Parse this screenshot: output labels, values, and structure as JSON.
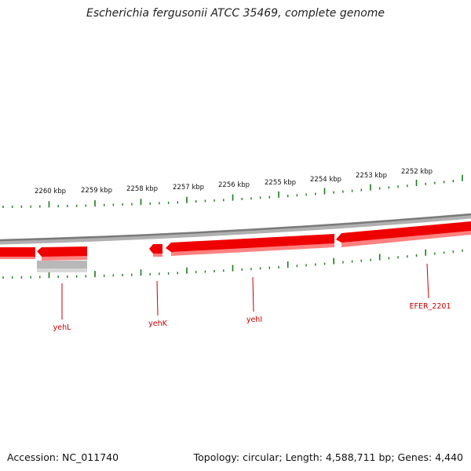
{
  "title": "Escherichia fergusonii ATCC 35469, complete genome",
  "footer": {
    "accession": "Accession: NC_011740",
    "summary": "Topology: circular; Length: 4,588,711 bp; Genes: 4,440"
  },
  "colors": {
    "gene_fill": "#ee0000",
    "gene_shadow": "#ff7777",
    "backbone": "#7a7a7a",
    "tick": "#1a7a1a",
    "label": "#cc0000",
    "gray_feature": "#b8b8b8"
  },
  "kbp_labels": [
    "2260 kbp",
    "2259 kbp",
    "2258 kbp",
    "2257 kbp",
    "2256 kbp",
    "2255 kbp",
    "2254 kbp",
    "2253 kbp",
    "2252 kbp"
  ],
  "genes": [
    {
      "name": "yehL",
      "strand": "reverse"
    },
    {
      "name": "yehK",
      "strand": "reverse"
    },
    {
      "name": "yehI",
      "strand": "reverse"
    },
    {
      "name": "EFER_2201",
      "strand": "reverse"
    }
  ]
}
